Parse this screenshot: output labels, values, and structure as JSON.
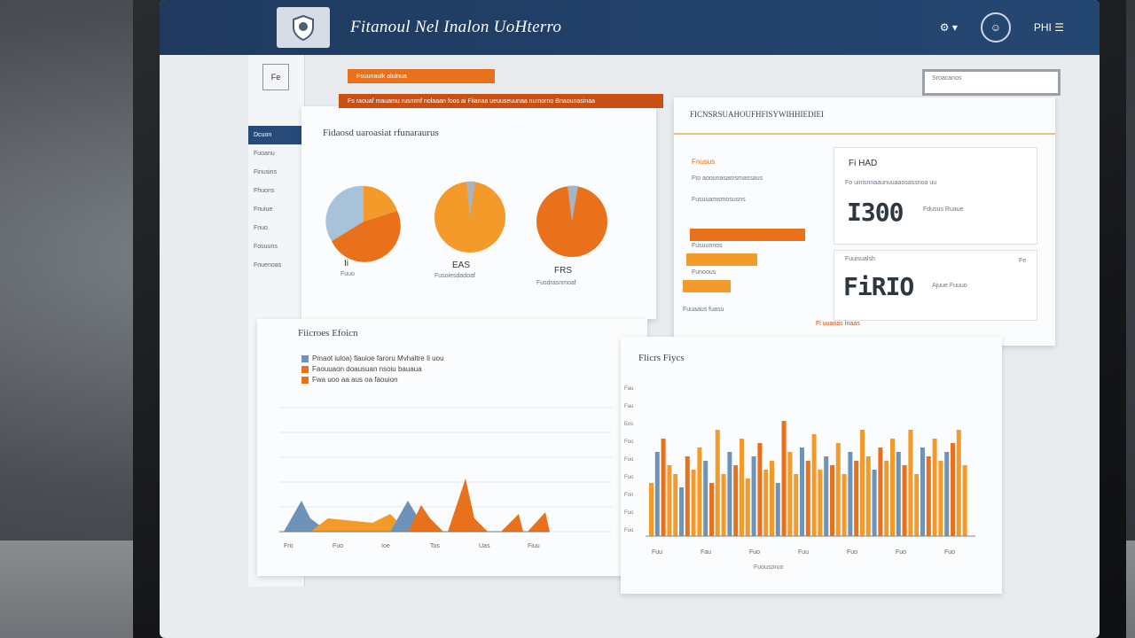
{
  "header": {
    "title": "Fitanoul Nel Inalon UoHterro",
    "right_label": "PHI ☰"
  },
  "sidebar": {
    "logo_text": "Fe",
    "items": [
      {
        "label": "Dcuon"
      },
      {
        "label": "Fuoanu"
      },
      {
        "label": "Finusins"
      },
      {
        "label": "Fhuons"
      },
      {
        "label": "Fnuiue"
      },
      {
        "label": "Fnuo"
      },
      {
        "label": "Fosuuns"
      },
      {
        "label": "Fnuenoas"
      }
    ]
  },
  "search": {
    "placeholder": "Sroacanos"
  },
  "pie_panel": {
    "banner_top": "Fsuunaulk aluinua",
    "banner_main": "Fs raouaf mauamu rusmmf nolaaan foos  ai  Fiianaa  ueuuseuunaa numorno  Bnaounasinaa",
    "title": "Fidaosd uaroasiat rfunaraurus",
    "pies": [
      {
        "label": "Ii",
        "sub": "Fuuo"
      },
      {
        "label": "EAS",
        "sub": "Fusoiesdadoaf"
      },
      {
        "label": "FRS",
        "sub": "Fusdrasnmoaf"
      }
    ]
  },
  "kpi_panel": {
    "title": "FICNSRSUAHOUFHFISYWIHHIEDIEI",
    "progress_title": "Fnusus",
    "progress_labels": [
      "Fto aoounasamsmassaus",
      "Fusuuamsmosusns",
      "Fusuunnos",
      "Funoous",
      "Fuuoa"
    ],
    "progress_values": [
      0.9,
      0.55,
      0.35
    ],
    "footer": "Fuuaaus fuasu",
    "footer2": "Fi uuanas Inaas",
    "card1": {
      "title": "Fi HAD",
      "sub": "Fo uinisnnaaunuuaaosassnoa uu",
      "value": "I300",
      "side": "Fdusus Ruaue"
    },
    "card2": {
      "title": "Fuuisualsh",
      "value": "FiRIO",
      "side": "Ajuue Fuuuo",
      "corner": "Fe"
    }
  },
  "line_panel": {
    "title": "Fiicroes Efoicn",
    "legend": [
      {
        "text": "Pmaot iuloa) fiauioe faroru Mvhaltre Ii uou",
        "color": "#6e93b8"
      },
      {
        "text": "Faouuaon doausuan nsoiu bauaua",
        "color": "#e9711c"
      },
      {
        "text": "Fwa uoo aa aus oa faouion",
        "color": "#e9711c"
      }
    ],
    "x_ticks": [
      "Fro",
      "Fuo",
      "Ioe",
      "Tos",
      "Uas",
      "Fiuu"
    ]
  },
  "bar_panel": {
    "title": "Flicrs Fiycs",
    "y_ticks": [
      "Fau",
      "Fau",
      "Eos",
      "Foo",
      "Fuo",
      "Fuo",
      "Fon",
      "Fuo",
      "Fuo"
    ],
    "x_ticks": [
      "Fuu",
      "Fau",
      "Fuo",
      "Fuu",
      "Fuo",
      "Fuo",
      "Fuo"
    ],
    "x_caption": "Fuousoruo"
  },
  "colors": {
    "orange": "#e9711c",
    "light_orange": "#f39a2b",
    "blue": "#6e93b8",
    "navy": "#1f3a5e"
  }
}
